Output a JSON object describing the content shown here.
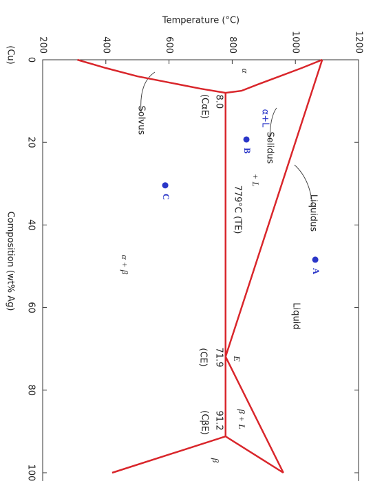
{
  "chart_data": {
    "type": "line",
    "title": "Temperature (°C)",
    "x_label": "Composition (wt% Ag)",
    "x_end_label": "(Cu)",
    "xlim": [
      0,
      100
    ],
    "xticks": [
      0,
      20,
      40,
      60,
      80,
      100
    ],
    "ylim": [
      200,
      1200
    ],
    "yticks": [
      200,
      400,
      600,
      800,
      1000,
      1200
    ],
    "line_color": "#d9262b",
    "series": [
      {
        "name": "Liquidus",
        "x": [
          0,
          71.9
        ],
        "values": [
          1085,
          779
        ]
      },
      {
        "name": "Solidus",
        "x": [
          0,
          2,
          4,
          6,
          7.5,
          8
        ],
        "values": [
          1085,
          1020,
          950,
          880,
          830,
          779
        ]
      },
      {
        "name": "Solvus",
        "x": [
          8,
          7,
          5.5,
          4,
          2,
          0
        ],
        "values": [
          779,
          700,
          600,
          500,
          400,
          310
        ]
      },
      {
        "name": "779°C (TE)",
        "x": [
          8,
          91.2
        ],
        "values": [
          779,
          779
        ]
      },
      {
        "x": [
          71.9,
          100
        ],
        "values": [
          779,
          962
        ]
      },
      {
        "x": [
          91.2,
          100
        ],
        "values": [
          779,
          962
        ]
      },
      {
        "x": [
          91.2,
          100
        ],
        "values": [
          779,
          420
        ]
      }
    ],
    "annotations": [
      "α",
      "8.0",
      "(CαE)",
      "71.9",
      "(CE)",
      "91.2",
      "(CβE)",
      "E",
      "α + β",
      "β + L",
      "Liquid",
      "+ L",
      "β"
    ],
    "points_color": "#2a36c8",
    "handwritten": "α+L",
    "points": [
      {
        "label": "A",
        "x": 48.4,
        "y": 1063
      },
      {
        "label": "B",
        "x": 19.3,
        "y": 845
      },
      {
        "label": "C",
        "x": 30.4,
        "y": 588
      }
    ]
  }
}
